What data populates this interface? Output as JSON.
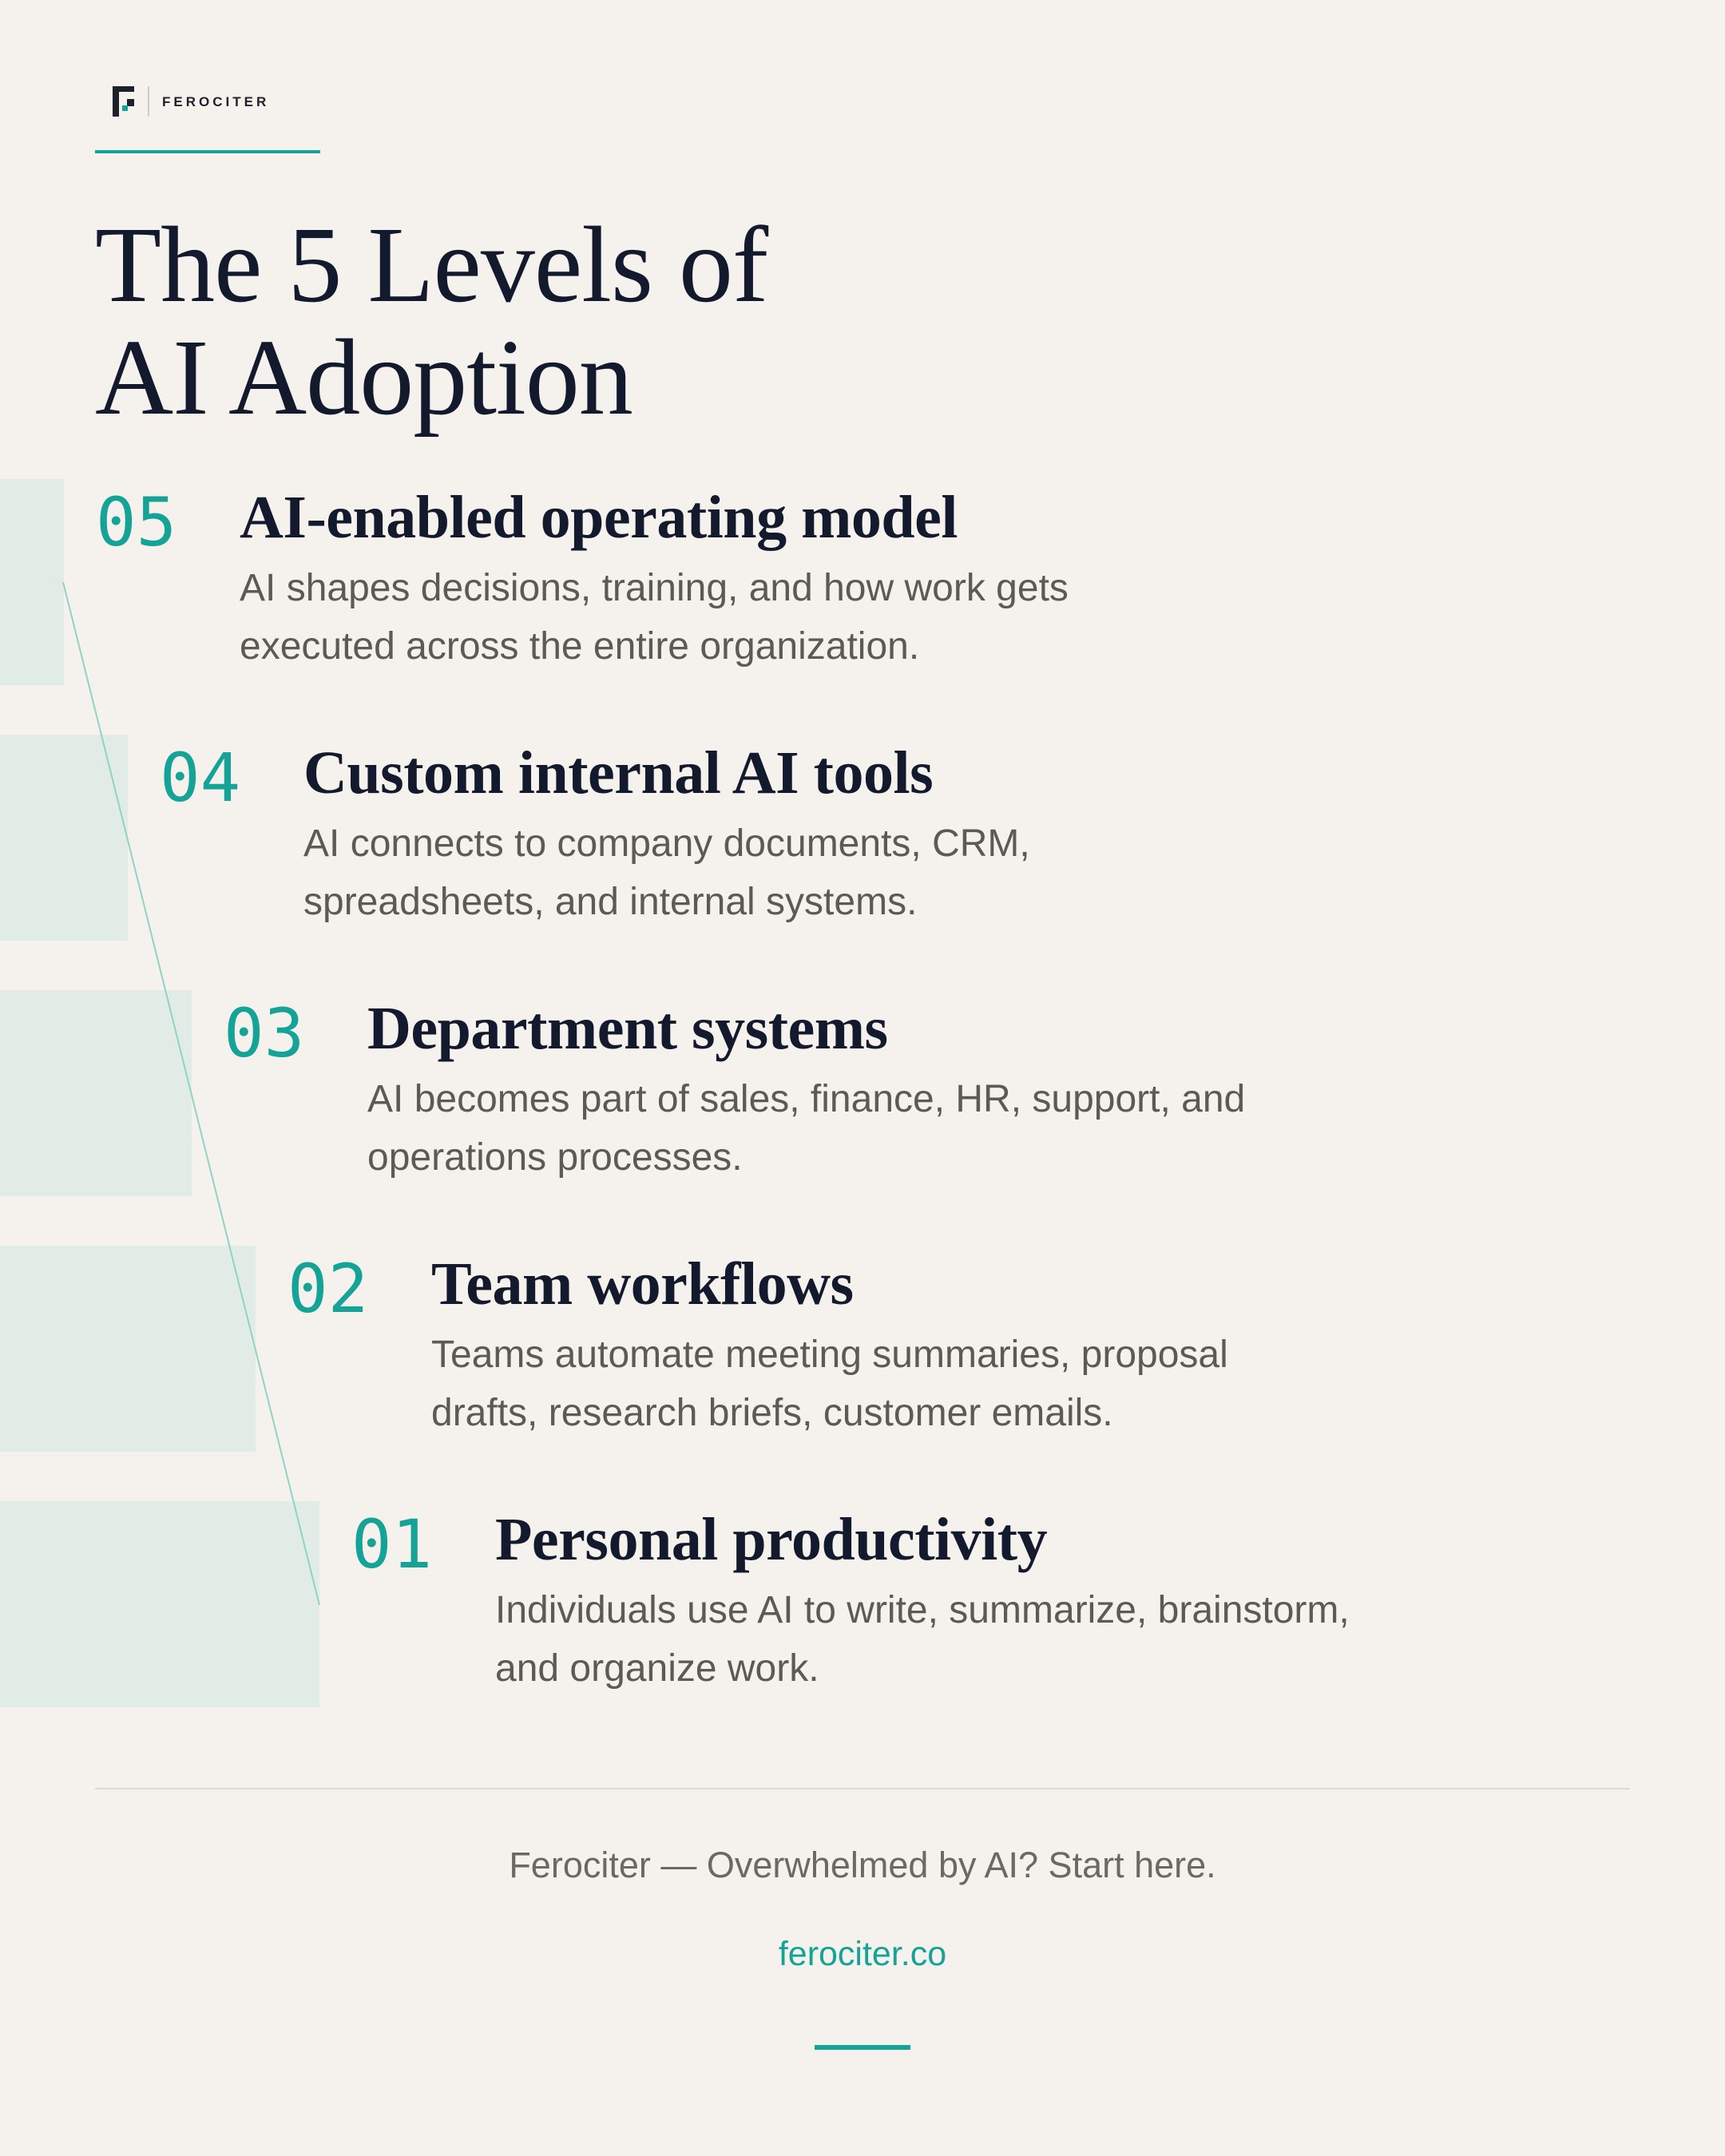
{
  "brand": {
    "name": "FEROCITER",
    "accent": "#14a396",
    "dark": "#141a2e",
    "logo_icon": "ferociter-logo"
  },
  "title": {
    "line1": "The 5 Levels of",
    "line2": "AI Adoption"
  },
  "levels": [
    {
      "number": "05",
      "title": "AI-enabled operating model",
      "desc_line1": "AI shapes decisions, training, and how work gets",
      "desc_line2": "executed across the entire organization."
    },
    {
      "number": "04",
      "title": "Custom internal AI tools",
      "desc_line1": "AI connects to company documents, CRM,",
      "desc_line2": "spreadsheets, and internal systems."
    },
    {
      "number": "03",
      "title": "Department systems",
      "desc_line1": "AI becomes part of sales, finance, HR, support, and",
      "desc_line2": "operations processes."
    },
    {
      "number": "02",
      "title": "Team workflows",
      "desc_line1": "Teams automate meeting summaries, proposal",
      "desc_line2": "drafts, research briefs, customer emails."
    },
    {
      "number": "01",
      "title": "Personal productivity",
      "desc_line1": "Individuals use AI to write, summarize, brainstorm,",
      "desc_line2": "and organize work."
    }
  ],
  "footer": {
    "tagline": "Ferociter — Overwhelmed by AI? Start here.",
    "link": "ferociter.co"
  }
}
